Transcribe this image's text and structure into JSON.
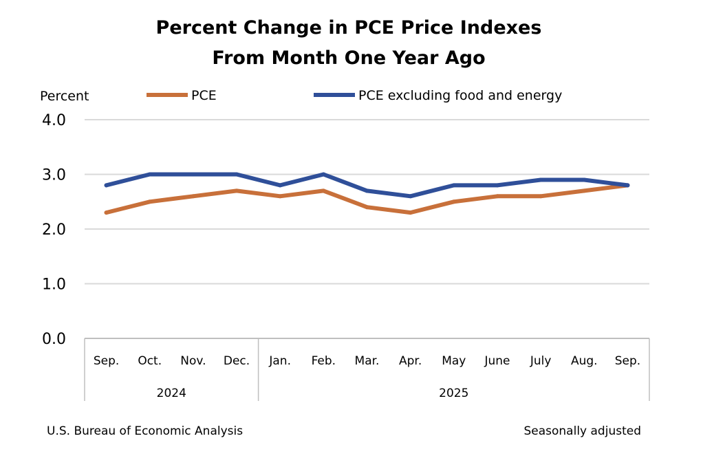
{
  "colors": {
    "pce": "#C8703A",
    "core": "#2F4F99",
    "grid": "#D9D9D9",
    "axis": "#BFBFBF"
  },
  "footer": {
    "source": "U.S. Bureau of Economic Analysis",
    "note": "Seasonally adjusted"
  },
  "chart_data": {
    "type": "line",
    "title": [
      "Percent Change in PCE Price Indexes",
      "From Month One Year Ago"
    ],
    "ylabel": "Percent",
    "xlabel": "",
    "ylim": [
      0,
      4
    ],
    "yticks": [
      "0.0",
      "1.0",
      "2.0",
      "3.0",
      "4.0"
    ],
    "grid": true,
    "legend_position": "top",
    "categories": [
      "Sep.",
      "Oct.",
      "Nov.",
      "Dec.",
      "Jan.",
      "Feb.",
      "Mar.",
      "Apr.",
      "May",
      "June",
      "July",
      "Aug.",
      "Sep."
    ],
    "year_groups": [
      {
        "label": "2024",
        "start": 0,
        "end": 3
      },
      {
        "label": "2025",
        "start": 4,
        "end": 12
      }
    ],
    "series": [
      {
        "name": "PCE",
        "color": "#C8703A",
        "values": [
          2.3,
          2.5,
          2.6,
          2.7,
          2.6,
          2.7,
          2.4,
          2.3,
          2.5,
          2.6,
          2.6,
          2.7,
          2.8
        ]
      },
      {
        "name": "PCE excluding food and energy",
        "color": "#2F4F99",
        "values": [
          2.8,
          3.0,
          3.0,
          3.0,
          2.8,
          3.0,
          2.7,
          2.6,
          2.8,
          2.8,
          2.9,
          2.9,
          2.8
        ]
      }
    ]
  }
}
